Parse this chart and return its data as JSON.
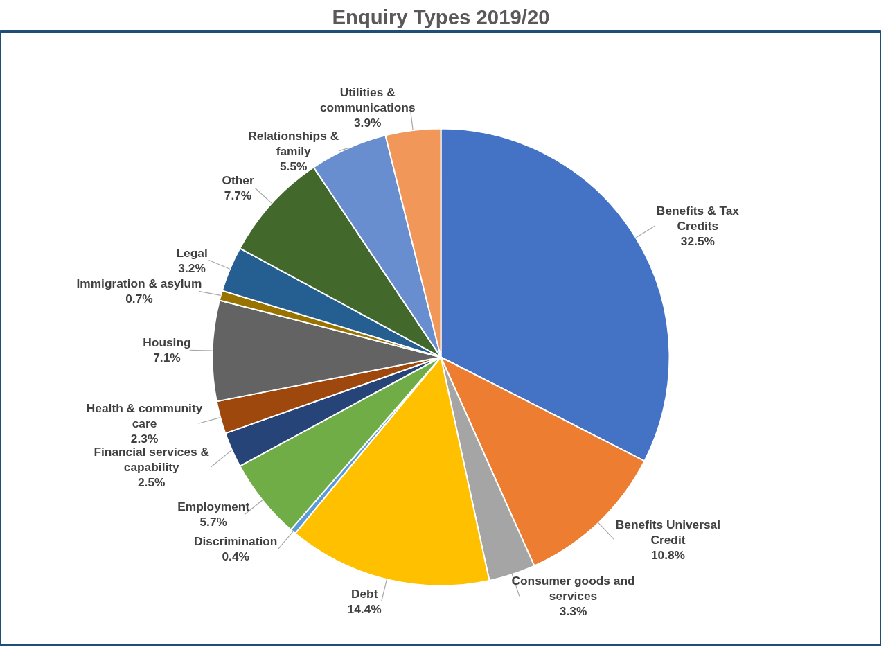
{
  "chart_data": {
    "type": "pie",
    "title": "Enquiry Types 2019/20",
    "categories": [
      "Benefits & Tax Credits",
      "Benefits Universal Credit",
      "Consumer goods and services",
      "Debt",
      "Discrimination",
      "Employment",
      "Financial services & capability",
      "Health & community care",
      "Housing",
      "Immigration & asylum",
      "Legal",
      "Other",
      "Relationships & family",
      "Utilities & communications"
    ],
    "values": [
      32.5,
      10.8,
      3.3,
      14.4,
      0.4,
      5.7,
      2.5,
      2.3,
      7.1,
      0.7,
      3.2,
      7.7,
      5.5,
      3.9
    ],
    "value_labels": [
      "32.5%",
      "10.8%",
      "3.3%",
      "14.4%",
      "0.4%",
      "5.7%",
      "2.5%",
      "2.3%",
      "7.1%",
      "0.7%",
      "3.2%",
      "7.7%",
      "5.5%",
      "3.9%"
    ],
    "colors": [
      "#4472c4",
      "#ed7d31",
      "#a5a5a5",
      "#ffc000",
      "#5b9bd5",
      "#70ad47",
      "#264478",
      "#9e480e",
      "#636363",
      "#997300",
      "#255e91",
      "#43682b",
      "#698ed0",
      "#f1975a"
    ]
  }
}
